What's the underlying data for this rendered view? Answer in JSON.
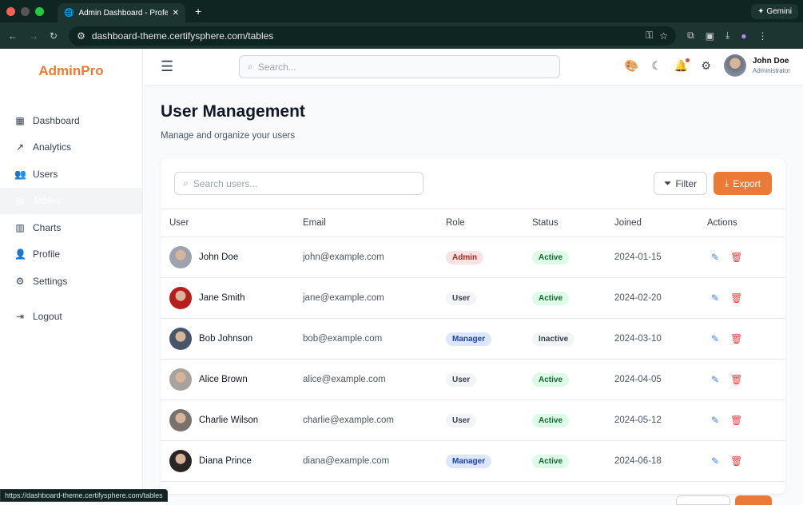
{
  "browser": {
    "tab_title": "Admin Dashboard - Professional",
    "gemini": "Gemini",
    "url": "dashboard-theme.certifysphere.com/tables",
    "status_url": "https://dashboard-theme.certifysphere.com/tables"
  },
  "sidebar": {
    "logo": "AdminPro",
    "items": [
      {
        "label": "Dashboard",
        "icon": "▦"
      },
      {
        "label": "Analytics",
        "icon": "↗"
      },
      {
        "label": "Users",
        "icon": "👥"
      },
      {
        "label": "Tables",
        "icon": "▤"
      },
      {
        "label": "Charts",
        "icon": "▥"
      },
      {
        "label": "Profile",
        "icon": "👤"
      },
      {
        "label": "Settings",
        "icon": "⚙"
      }
    ],
    "logout": "Logout",
    "active": "Tables"
  },
  "header": {
    "search_placeholder": "Search...",
    "user_name": "John Doe",
    "user_role": "Administrator"
  },
  "page": {
    "title": "User Management",
    "subtitle": "Manage and organize your users",
    "search_placeholder": "Search users...",
    "filter": "Filter",
    "export": "Export"
  },
  "table": {
    "columns": [
      "User",
      "Email",
      "Role",
      "Status",
      "Joined",
      "Actions"
    ],
    "rows": [
      {
        "name": "John Doe",
        "email": "john@example.com",
        "role": "Admin",
        "status": "Active",
        "joined": "2024-01-15"
      },
      {
        "name": "Jane Smith",
        "email": "jane@example.com",
        "role": "User",
        "status": "Active",
        "joined": "2024-02-20"
      },
      {
        "name": "Bob Johnson",
        "email": "bob@example.com",
        "role": "Manager",
        "status": "Inactive",
        "joined": "2024-03-10"
      },
      {
        "name": "Alice Brown",
        "email": "alice@example.com",
        "role": "User",
        "status": "Active",
        "joined": "2024-04-05"
      },
      {
        "name": "Charlie Wilson",
        "email": "charlie@example.com",
        "role": "User",
        "status": "Active",
        "joined": "2024-05-12"
      },
      {
        "name": "Diana Prince",
        "email": "diana@example.com",
        "role": "Manager",
        "status": "Active",
        "joined": "2024-06-18"
      }
    ]
  },
  "colors": {
    "accent": "#ea7a35",
    "admin_bg": "#fde2e2",
    "admin_fg": "#b42323",
    "user_bg": "#f3f4f6",
    "user_fg": "#374151",
    "manager_bg": "#dbe7fe",
    "manager_fg": "#1e40af",
    "active_bg": "#dcfce7",
    "active_fg": "#166534",
    "inactive_bg": "#f3f4f6",
    "inactive_fg": "#374151"
  }
}
